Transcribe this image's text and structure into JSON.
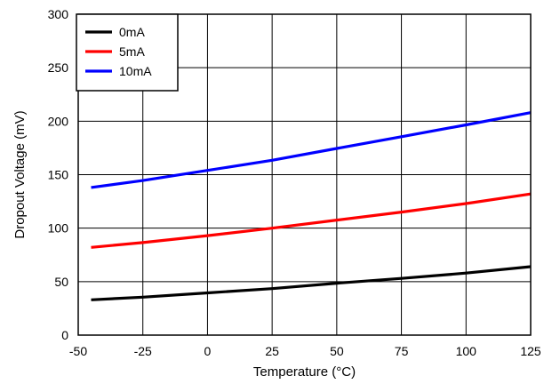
{
  "chart_data": {
    "type": "line",
    "title": "",
    "xlabel": "Temperature (°C)",
    "ylabel": "Dropout Voltage (mV)",
    "xlim": [
      -50,
      125
    ],
    "ylim": [
      0,
      300
    ],
    "xticks": [
      -50,
      -25,
      0,
      25,
      50,
      75,
      100,
      125
    ],
    "yticks": [
      0,
      50,
      100,
      150,
      200,
      250,
      300
    ],
    "xtick_labels": [
      "-50",
      "-25",
      "0",
      "25",
      "50",
      "75",
      "100",
      "125"
    ],
    "ytick_labels": [
      "0",
      "50",
      "100",
      "150",
      "200",
      "250",
      "300"
    ],
    "grid": true,
    "legend_position": "top-left",
    "series": [
      {
        "name": "0mA",
        "color": "#000000",
        "x": [
          -45,
          -25,
          0,
          25,
          50,
          75,
          100,
          125
        ],
        "y": [
          33,
          35.5,
          39.5,
          43.5,
          48.5,
          53,
          58,
          64
        ]
      },
      {
        "name": "5mA",
        "color": "#ff0000",
        "x": [
          -45,
          -25,
          0,
          25,
          50,
          75,
          100,
          125
        ],
        "y": [
          82,
          86.5,
          93,
          100,
          107.5,
          115,
          123,
          132
        ]
      },
      {
        "name": "10mA",
        "color": "#0000ff",
        "x": [
          -45,
          -25,
          0,
          25,
          50,
          75,
          100,
          125
        ],
        "y": [
          138,
          144.5,
          154,
          163.5,
          174.5,
          185.5,
          196.5,
          208
        ]
      }
    ]
  }
}
